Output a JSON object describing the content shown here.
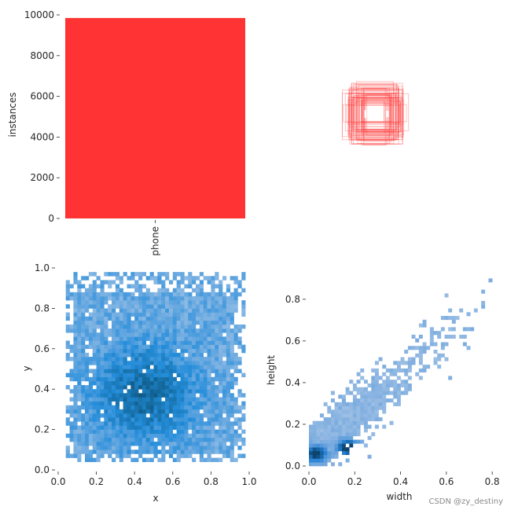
{
  "watermark": "CSDN @zy_destiny",
  "chart_data": [
    {
      "id": "instances",
      "type": "bar",
      "categories": [
        "phone"
      ],
      "values": [
        9850
      ],
      "ylabel": "instances",
      "ylim": [
        0,
        10000
      ],
      "yticks": [
        0,
        2000,
        4000,
        6000,
        8000,
        10000
      ],
      "color": "#ff3333"
    },
    {
      "id": "boxes",
      "type": "scatter",
      "description_kind": "overlaid bounding-box outlines centered near (0.5, 0.5)",
      "box_center": [
        0.5,
        0.5
      ],
      "box_width_range": [
        0.08,
        0.3
      ],
      "box_height_range": [
        0.1,
        0.3
      ],
      "color": "#ff3333"
    },
    {
      "id": "xy",
      "type": "heatmap",
      "xlabel": "x",
      "ylabel": "y",
      "xlim": [
        0.0,
        1.0
      ],
      "ylim": [
        0.0,
        1.0
      ],
      "xticks": [
        0.0,
        0.2,
        0.4,
        0.6,
        0.8,
        1.0
      ],
      "yticks": [
        0.0,
        0.2,
        0.4,
        0.6,
        0.8,
        1.0
      ],
      "x_extent": [
        0.05,
        0.95
      ],
      "y_extent": [
        0.05,
        0.95
      ],
      "peak": [
        0.45,
        0.38
      ],
      "color": "#1f8ee6"
    },
    {
      "id": "wh",
      "type": "heatmap",
      "xlabel": "width",
      "ylabel": "height",
      "xlim": [
        0.0,
        0.82
      ],
      "ylim": [
        0.0,
        0.92
      ],
      "xticks": [
        0.0,
        0.2,
        0.4,
        0.6,
        0.8
      ],
      "yticks": [
        0.0,
        0.2,
        0.4,
        0.6,
        0.8
      ],
      "peaks": [
        [
          0.03,
          0.06
        ],
        [
          0.17,
          0.09
        ]
      ],
      "color": "#1f8ee6"
    }
  ]
}
